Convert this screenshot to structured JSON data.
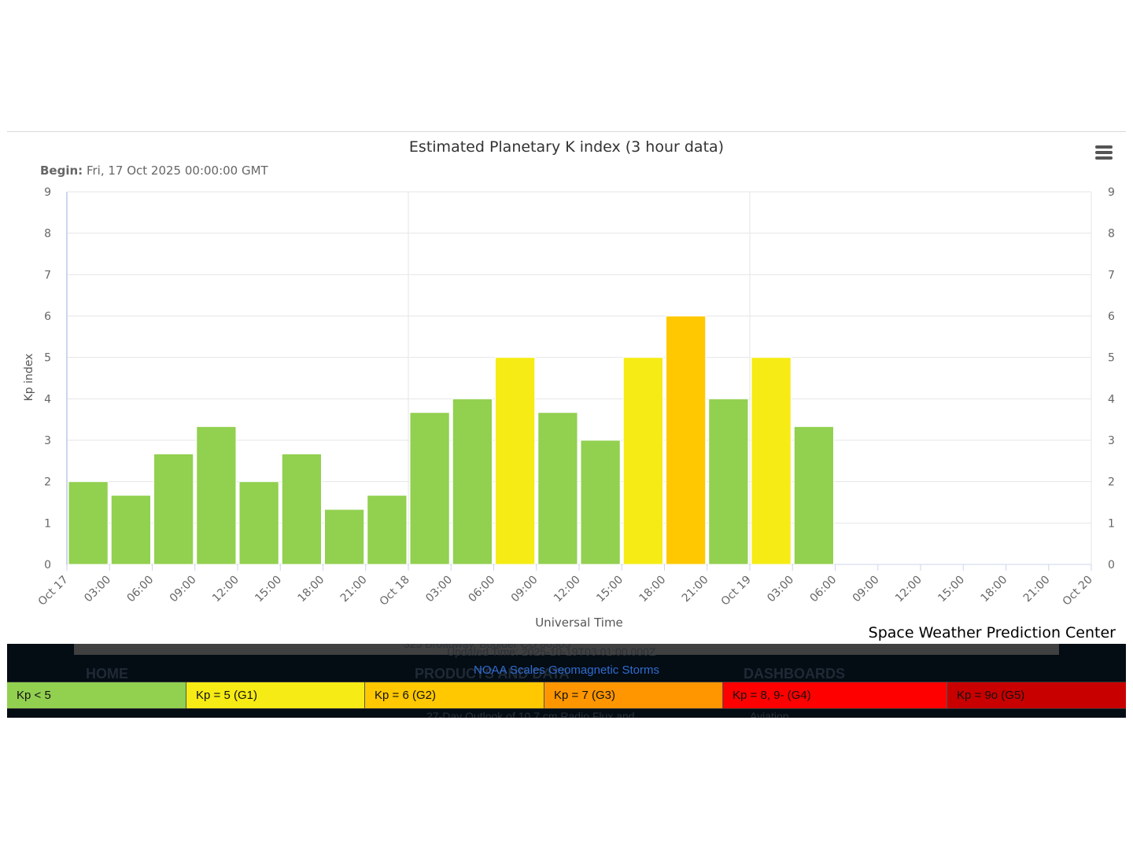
{
  "chart_data": {
    "type": "bar",
    "title": "Estimated Planetary K index (3 hour data)",
    "subtitle_label": "Begin:",
    "subtitle_value": "Fri, 17 Oct 2025 00:00:00 GMT",
    "ylabel": "Kp index",
    "xlabel": "Universal Time",
    "ylim": [
      0,
      9
    ],
    "yticks": [
      "0",
      "1",
      "2",
      "3",
      "4",
      "5",
      "6",
      "7",
      "8",
      "9"
    ],
    "xtick_labels": [
      "Oct 17",
      "03:00",
      "06:00",
      "09:00",
      "12:00",
      "15:00",
      "18:00",
      "21:00",
      "Oct 18",
      "03:00",
      "06:00",
      "09:00",
      "12:00",
      "15:00",
      "18:00",
      "21:00",
      "Oct 19",
      "03:00",
      "06:00",
      "09:00",
      "12:00",
      "15:00",
      "18:00",
      "21:00",
      "Oct 20"
    ],
    "grid": true,
    "values": [
      2.0,
      1.67,
      2.67,
      3.33,
      2.0,
      2.67,
      1.33,
      1.67,
      3.67,
      4.0,
      5.0,
      3.67,
      3.0,
      5.0,
      6.0,
      4.0,
      5.0,
      3.33
    ],
    "colors": {
      "kp_below_5": "#92d050",
      "kp_5": "#f6eb14",
      "kp_6": "#ffc800",
      "kp_7": "#ff9600",
      "kp_8_9minus": "#ff0000",
      "kp_9o": "#c80000"
    }
  },
  "credit": "Space Weather Prediction Center",
  "menu_icon": "hamburger-menu-icon",
  "noaa_scales": {
    "title": "NOAA Scales Geomagnetic Storms",
    "legend": [
      {
        "label": "Kp < 5",
        "color": "#92d050"
      },
      {
        "label": "Kp = 5 (G1)",
        "color": "#f6eb14"
      },
      {
        "label": "Kp = 6 (G2)",
        "color": "#ffc800"
      },
      {
        "label": "Kp = 7 (G3)",
        "color": "#ff9600"
      },
      {
        "label": "Kp = 8, 9- (G4)",
        "color": "#ff0000"
      },
      {
        "label": "Kp = 9o (G5)",
        "color": "#c80000"
      }
    ]
  },
  "background_page": {
    "address_fragment": "325 Broadway, Boulder CO 80305",
    "updated": "Updated Time: 2025-10-19T03:01:00.000Z",
    "nav_home": "HOME",
    "nav_products": "PRODUCTS AND DATA",
    "nav_dashboards": "DASHBOARDS",
    "link_outlook": "27-Day Outlook of 10.7 cm Radio Flux and",
    "link_aviation": "Aviation"
  }
}
